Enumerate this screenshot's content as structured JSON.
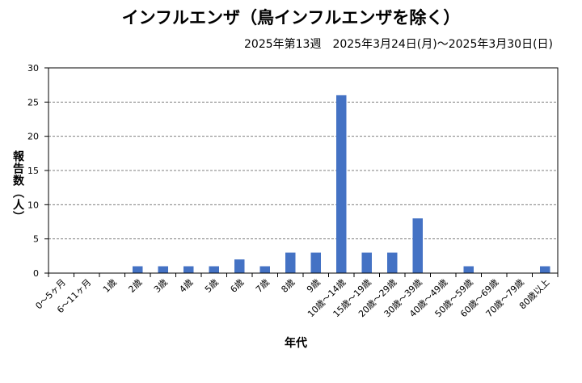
{
  "chart_data": {
    "type": "bar",
    "title": "インフルエンザ（鳥インフルエンザを除く）",
    "subtitle": "2025年第13週　2025年3月24日(月)〜2025年3月30日(日)",
    "xlabel": "年代",
    "ylabel": "報告数（人）",
    "ylim": [
      0,
      30
    ],
    "yticks": [
      0,
      5,
      10,
      15,
      20,
      25,
      30
    ],
    "grid": true,
    "legend": "none",
    "bar_color": "#4472C4",
    "categories": [
      "0〜5ヶ月",
      "6〜11ヶ月",
      "1歳",
      "2歳",
      "3歳",
      "4歳",
      "5歳",
      "6歳",
      "7歳",
      "8歳",
      "9歳",
      "10歳〜14歳",
      "15歳〜19歳",
      "20歳〜29歳",
      "30歳〜39歳",
      "40歳〜49歳",
      "50歳〜59歳",
      "60歳〜69歳",
      "70歳〜79歳",
      "80歳以上"
    ],
    "values": [
      0,
      0,
      0,
      1,
      1,
      1,
      1,
      2,
      1,
      3,
      3,
      26,
      3,
      3,
      8,
      0,
      1,
      0,
      0,
      1
    ]
  }
}
